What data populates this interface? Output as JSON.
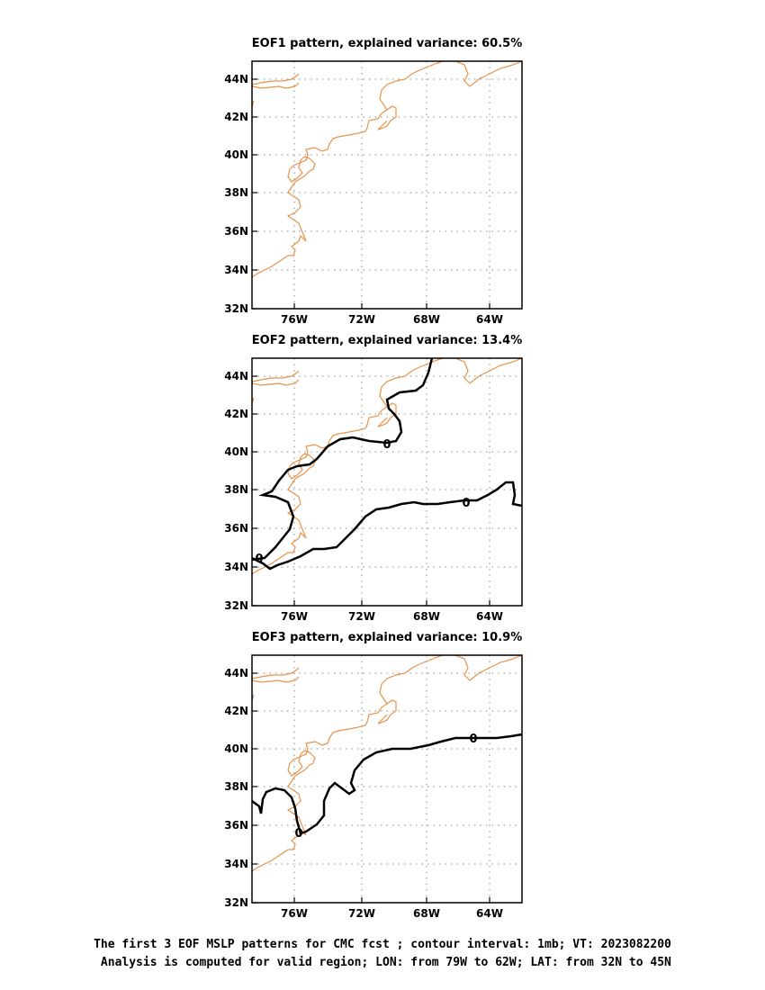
{
  "panels": [
    {
      "title": "EOF1 pattern, explained variance: 60.5%",
      "contour_labels": []
    },
    {
      "title": "EOF2 pattern, explained variance: 13.4%",
      "contour_labels": [
        "0",
        "0",
        "0"
      ]
    },
    {
      "title": "EOF3 pattern, explained variance: 10.9%",
      "contour_labels": [
        "0",
        "0"
      ]
    }
  ],
  "lat_ticks": [
    "44N",
    "42N",
    "40N",
    "38N",
    "36N",
    "34N",
    "32N"
  ],
  "lon_ticks": [
    "76W",
    "72W",
    "68W",
    "64W"
  ],
  "caption": {
    "line1": "The first 3 EOF MSLP patterns for CMC fcst ; contour interval: 1mb; VT: 2023082200",
    "line2": " Analysis is computed for valid region; LON: from 79W to 62W; LAT: from 32N to 45N"
  },
  "colors": {
    "coastline": "#e8924a",
    "contour": "#000000",
    "grid": "#888888"
  }
}
